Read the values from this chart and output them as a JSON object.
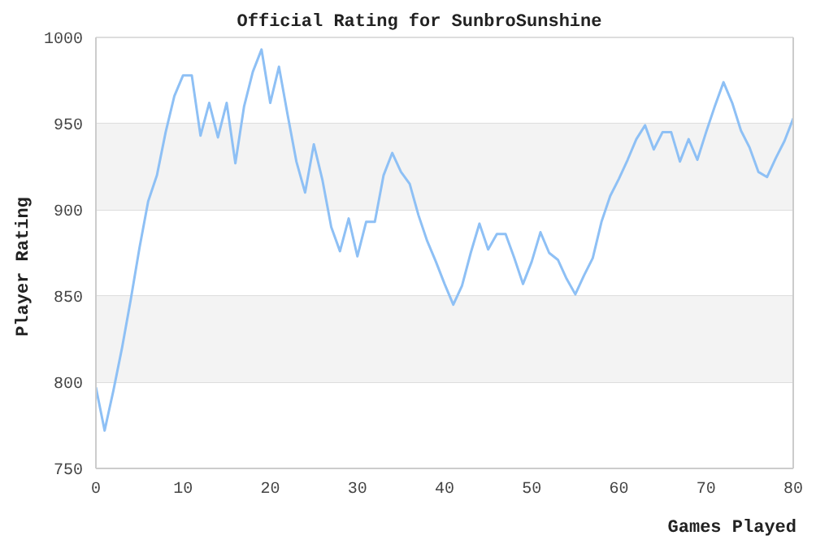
{
  "chart_data": {
    "type": "line",
    "title": "Official Rating for SunbroSunshine",
    "xlabel": "Games Played",
    "ylabel": "Player Rating",
    "x": [
      0,
      1,
      2,
      3,
      4,
      5,
      6,
      7,
      8,
      9,
      10,
      11,
      12,
      13,
      14,
      15,
      16,
      17,
      18,
      19,
      20,
      21,
      22,
      23,
      24,
      25,
      26,
      27,
      28,
      29,
      30,
      31,
      32,
      33,
      34,
      35,
      36,
      37,
      38,
      39,
      40,
      41,
      42,
      43,
      44,
      45,
      46,
      47,
      48,
      49,
      50,
      51,
      52,
      53,
      54,
      55,
      56,
      57,
      58,
      59,
      60,
      61,
      62,
      63,
      64,
      65,
      66,
      67,
      68,
      69,
      70,
      71,
      72,
      73,
      74,
      75,
      76,
      77,
      78,
      79,
      80
    ],
    "series": [
      {
        "color": "#8ec0f5",
        "values": [
          797,
          772,
          795,
          820,
          848,
          878,
          905,
          920,
          945,
          966,
          978,
          978,
          943,
          962,
          942,
          962,
          927,
          960,
          980,
          993,
          962,
          983,
          955,
          928,
          910,
          938,
          917,
          890,
          876,
          895,
          873,
          893,
          893,
          920,
          933,
          922,
          915,
          897,
          882,
          870,
          857,
          845,
          856,
          875,
          892,
          877,
          886,
          886,
          872,
          857,
          870,
          887,
          875,
          871,
          860,
          851,
          862,
          872,
          893,
          908,
          918,
          929,
          941,
          949,
          935,
          945,
          945,
          928,
          941,
          929,
          945,
          960,
          974,
          962,
          946,
          936,
          922,
          919,
          930,
          940,
          953
        ]
      }
    ],
    "xlim": [
      0,
      80
    ],
    "xticks": [
      0,
      10,
      20,
      30,
      40,
      50,
      60,
      70,
      80
    ],
    "ylim": [
      750,
      1000
    ],
    "yticks": [
      750,
      800,
      850,
      900,
      950,
      1000
    ],
    "grid": "y",
    "marker": "none",
    "line_style": "solid"
  }
}
